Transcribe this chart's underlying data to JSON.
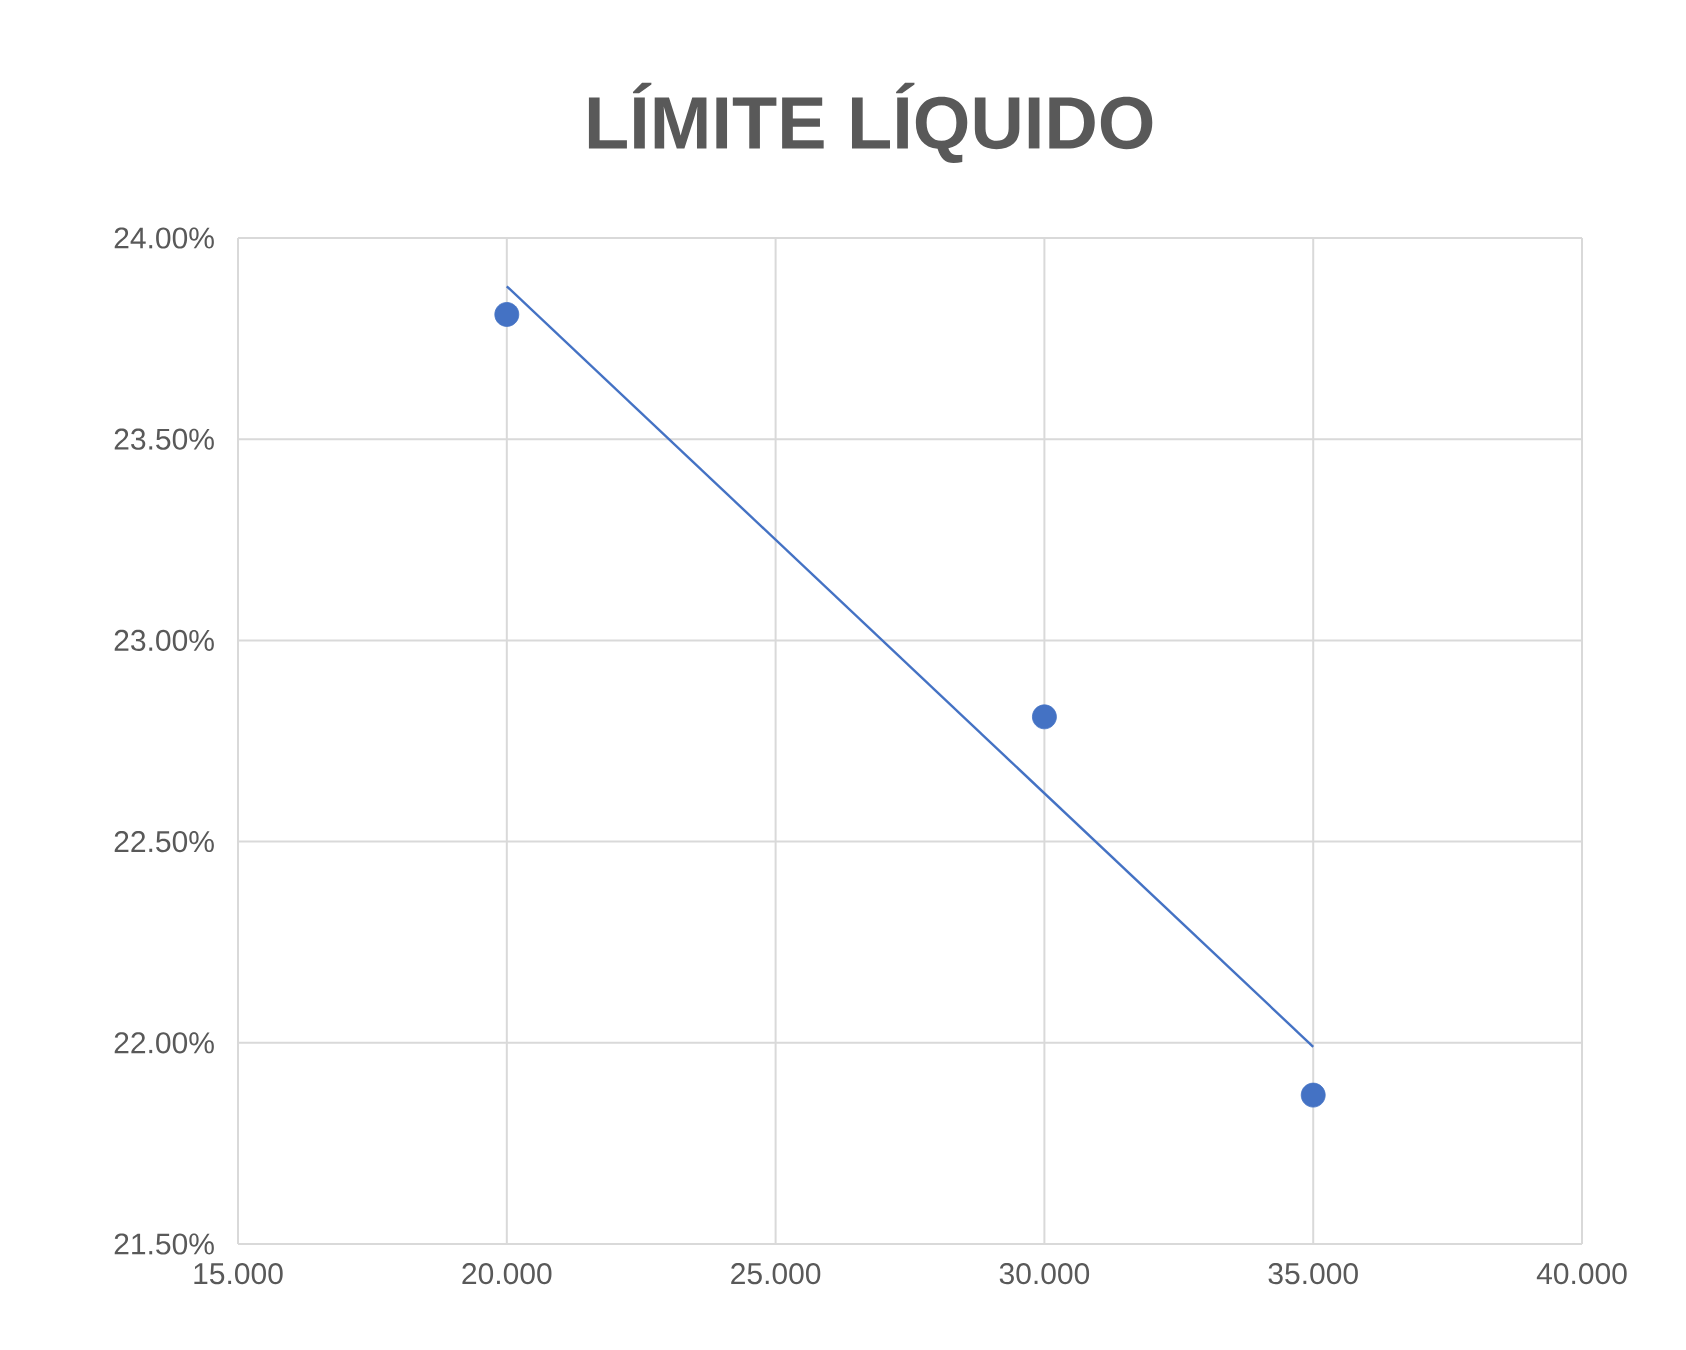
{
  "chart_data": {
    "type": "scatter",
    "title": "LÍMITE LÍQUIDO",
    "series": [
      {
        "color": "#4472c4",
        "marker": "circle",
        "x": [
          20,
          30,
          35
        ],
        "values": [
          23.81,
          22.81,
          21.87
        ]
      },
      {
        "type": "line",
        "color": "#4472c4",
        "marker": "none",
        "line_style": "solid",
        "x": [
          20,
          35
        ],
        "values": [
          23.88,
          21.99
        ]
      }
    ],
    "xlim": [
      15,
      40
    ],
    "ylim": [
      21.5,
      24
    ],
    "xticks": [
      {
        "value": 15,
        "label": "15.000"
      },
      {
        "value": 20,
        "label": "20.000"
      },
      {
        "value": 25,
        "label": "25.000"
      },
      {
        "value": 30,
        "label": "30.000"
      },
      {
        "value": 35,
        "label": "35.000"
      },
      {
        "value": 40,
        "label": "40.000"
      }
    ],
    "yticks": [
      {
        "value": 21.5,
        "label": "21.50%"
      },
      {
        "value": 22,
        "label": "22.00%"
      },
      {
        "value": 22.5,
        "label": "22.50%"
      },
      {
        "value": 23,
        "label": "23.00%"
      },
      {
        "value": 23.5,
        "label": "23.50%"
      },
      {
        "value": 24,
        "label": "24.00%"
      }
    ],
    "grid": true
  }
}
